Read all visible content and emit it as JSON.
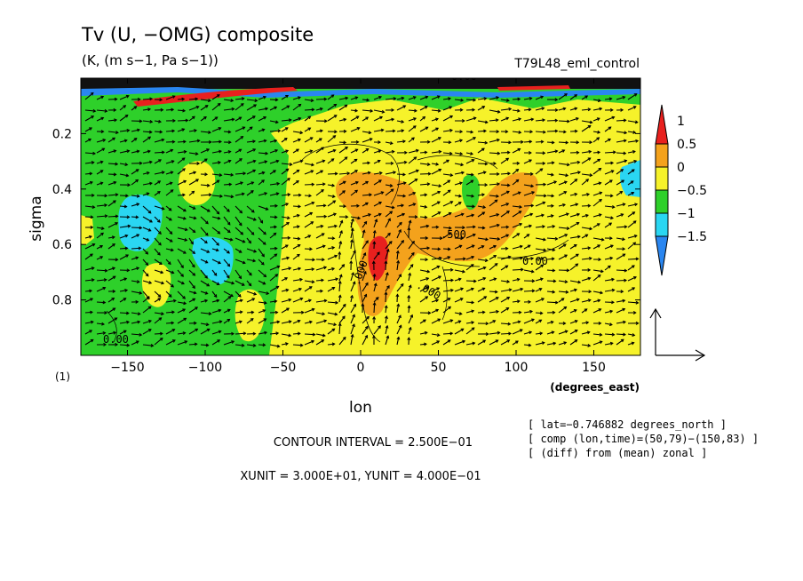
{
  "chart_data": {
    "type": "heatmap",
    "title": "Tv (U, −OMG) composite",
    "subtitle": "(K, (m s−1, Pa s−1))",
    "experiment": "T79L48_eml_control",
    "xlabel": "lon",
    "xunit": "(degrees_east)",
    "ylabel": "sigma",
    "panel_label": "(1)",
    "xlim": [
      -180,
      180
    ],
    "ylim": [
      1.0,
      0.0
    ],
    "y_inverted": true,
    "x_ticks": [
      -150,
      -100,
      -50,
      0,
      50,
      100,
      150
    ],
    "x_tick_labels": [
      "−150",
      "−100",
      "−50",
      "0",
      "50",
      "100",
      "150"
    ],
    "y_ticks": [
      0.2,
      0.4,
      0.6,
      0.8
    ],
    "y_tick_labels": [
      "0.2",
      "0.4",
      "0.6",
      "0.8"
    ],
    "colorbar": {
      "levels": [
        -1.5,
        -1,
        -0.5,
        0,
        0.5,
        1
      ],
      "labels": [
        "1",
        "0.5",
        "0",
        "−0.5",
        "−1",
        "−1.5"
      ],
      "bins": [
        {
          "range": [
            1,
            1.5
          ],
          "color": "#e8201e"
        },
        {
          "range": [
            0.5,
            1
          ],
          "color": "#f4a21c"
        },
        {
          "range": [
            0,
            0.5
          ],
          "color": "#f6f22a"
        },
        {
          "range": [
            -0.5,
            0
          ],
          "color": "#2ed02a"
        },
        {
          "range": [
            -1,
            -0.5
          ],
          "color": "#2ad6f2"
        },
        {
          "range": [
            -1.5,
            -1
          ],
          "color": "#2a86f0"
        }
      ]
    },
    "regions": [
      {
        "level": 0.5,
        "lon": [
          -20,
          95
        ],
        "sigma": [
          0.36,
          0.92
        ]
      },
      {
        "level": 1.0,
        "lon": [
          5,
          15
        ],
        "sigma": [
          0.58,
          0.72
        ]
      },
      {
        "level": 0.0,
        "lon": [
          -40,
          180
        ],
        "sigma": [
          0.08,
          1.0
        ]
      },
      {
        "level": -0.5,
        "lon": [
          -145,
          -118
        ],
        "sigma": [
          0.44,
          0.62
        ]
      },
      {
        "level": -0.5,
        "lon": [
          -103,
          -85
        ],
        "sigma": [
          0.57,
          0.73
        ]
      },
      {
        "level": -0.5,
        "lon": [
          167,
          180
        ],
        "sigma": [
          0.36,
          0.44
        ]
      },
      {
        "level": 0.0,
        "lon": [
          -115,
          -97
        ],
        "sigma": [
          0.32,
          0.44
        ]
      },
      {
        "level": 0.0,
        "lon": [
          -145,
          -128
        ],
        "sigma": [
          0.72,
          0.86
        ]
      },
      {
        "level": 0.0,
        "lon": [
          -180,
          -172
        ],
        "sigma": [
          0.58,
          0.67
        ]
      }
    ],
    "contour_labels": [
      "0.00",
      "0.00",
      ".500",
      ".000",
      "0.00",
      ".000"
    ],
    "contour_interval": "CONTOUR INTERVAL = 2.500E−01",
    "vector_units": "XUNIT = 3.000E+01, YUNIT = 4.000E−01",
    "info": [
      "[ lat=−0.746882 degrees_north ]",
      "[ comp (lon,time)=(50,79)−(150,83) ]",
      "[ (diff) from (mean) zonal ]"
    ]
  }
}
